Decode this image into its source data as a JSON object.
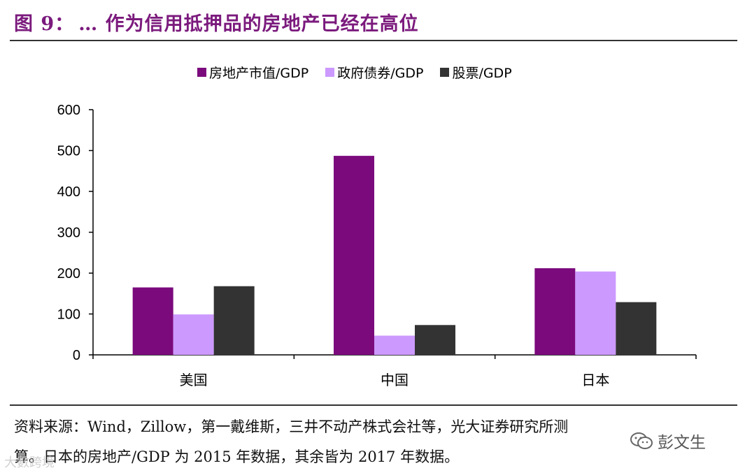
{
  "figure": {
    "label": "图 9：",
    "title": "… 作为信用抵押品的房地产已经在高位"
  },
  "chart_data": {
    "type": "bar",
    "title": "",
    "xlabel": "",
    "ylabel": "",
    "categories": [
      "美国",
      "中国",
      "日本"
    ],
    "series": [
      {
        "name": "房地产市值/GDP",
        "color": "#7b0a7d",
        "values": [
          165,
          487,
          212
        ]
      },
      {
        "name": "政府债券/GDP",
        "color": "#cc99ff",
        "values": [
          99,
          47,
          204
        ]
      },
      {
        "name": "股票/GDP",
        "color": "#333333",
        "values": [
          168,
          73,
          129
        ]
      }
    ],
    "ylim": [
      0,
      600
    ],
    "yticks": [
      "0",
      "100",
      "200",
      "300",
      "400",
      "500",
      "600"
    ],
    "grid": false,
    "legend_position": "top"
  },
  "source_note": {
    "line1": "资料来源：Wind，Zillow，第一戴维斯，三井不动产株式会社等，光大证券研究所测",
    "line2": "算。日本的房地产/GDP 为 2015 年数据，其余皆为 2017 年数据。"
  },
  "watermarks": {
    "left": "大數跨境",
    "right": "彭文生"
  }
}
